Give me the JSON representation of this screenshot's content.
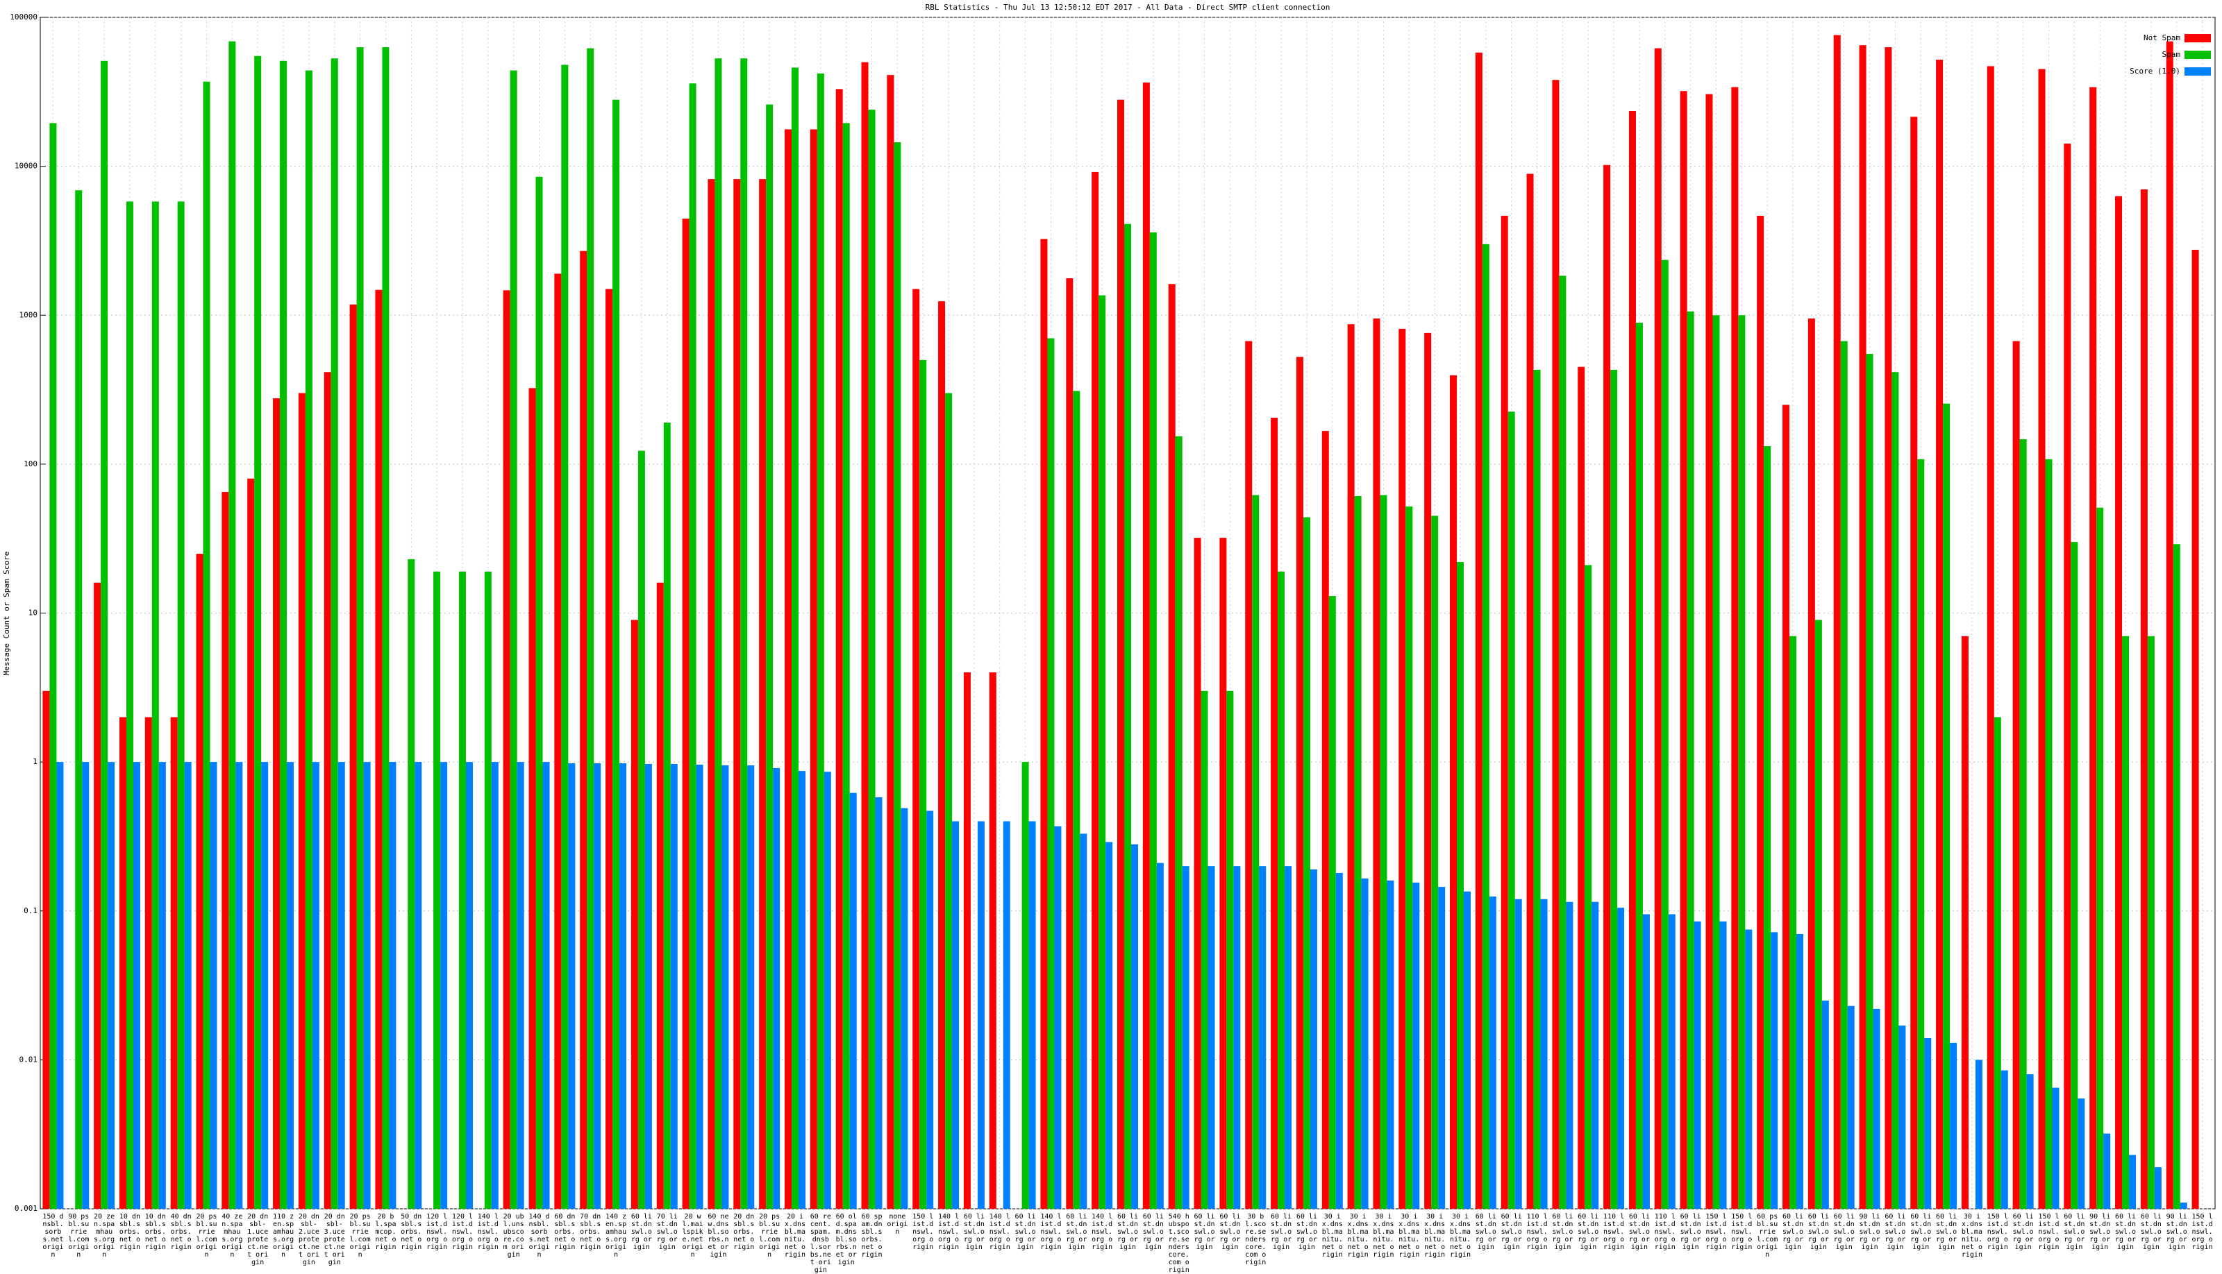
{
  "chart_data": {
    "type": "bar",
    "log_scale": true,
    "grid": true,
    "legend": "top-right",
    "title": "RBL Statistics - Thu Jul 13 12:50:12 EDT 2017 - All Data - Direct SMTP client connection",
    "y_label": "Message Count or Spam Score",
    "ylim": [
      0.001,
      100000
    ],
    "yticks": [
      0.001,
      0.01,
      0.1,
      1,
      10,
      100,
      1000,
      10000,
      100000
    ],
    "categories": [
      "150 dnsbl.sorbs.net origin",
      "90 psbl.surriel.com origin",
      "20 zen.spamhaus.org origin",
      "10 dnsbl.sorbs.net origin",
      "10 dnsbl.sorbs.net origin",
      "40 dnsbl.sorbs.net origin",
      "20 psbl.surriel.com origin",
      "40 zen.spamhaus.org origin",
      "20 dnsbl-1.uceprotect.net origin",
      "110 zen.spamhaus.org origin",
      "20 dnsbl-2.uceprotect.net origin",
      "20 dnsbl-3.uceprotect.net origin",
      "20 psbl.surriel.com origin",
      "20 bl.spamcop.net origin",
      "50 dnsbl.sorbs.net origin",
      "120 list.dnswl.org origin",
      "120 list.dnswl.org origin",
      "140 list.dnswl.org origin",
      "20 ubl.unsubscore.com origin",
      "140 dnsbl.sorbs.net origin",
      "60 dnsbl.sorbs.net origin",
      "70 dnsbl.sorbs.net origin",
      "140 zen.spamhaus.org origin",
      "60 list.dnswl.org origin",
      "70 list.dnswl.org origin",
      "20 wl.mailspike.net origin",
      "60 new.dnsbl.sorbs.net origin",
      "20 dnsbl.sorbs.net origin",
      "20 psbl.surriel.com origin",
      "20 ix.dnsbl.manitu.net origin",
      "60 recent.spam.dnsbl.sorbs.net origin",
      "60 old.spam.dnsbl.sorbs.net origin",
      "60 spam.dnsbl.sorbs.net origin",
      "none origin",
      "150 list.dnswl.org origin",
      "140 list.dnswl.org origin",
      "60 list.dnswl.org origin",
      "140 list.dnswl.org origin",
      "60 list.dnswl.org origin",
      "140 list.dnswl.org origin",
      "60 list.dnswl.org origin",
      "140 list.dnswl.org origin",
      "60 list.dnswl.org origin",
      "60 list.dnswl.org origin",
      "540 hubspot.score.senderscore.com origin",
      "60 list.dnswl.org origin",
      "60 list.dnswl.org origin",
      "30 bl.score.senderscore.com origin",
      "60 list.dnswl.org origin",
      "60 list.dnswl.org origin",
      "30 ix.dnsbl.manitu.net origin",
      "30 ix.dnsbl.manitu.net origin",
      "30 ix.dnsbl.manitu.net origin",
      "30 ix.dnsbl.manitu.net origin",
      "30 ix.dnsbl.manitu.net origin",
      "30 ix.dnsbl.manitu.net origin",
      "60 list.dnswl.org origin",
      "60 list.dnswl.org origin",
      "110 list.dnswl.org origin",
      "60 list.dnswl.org origin",
      "60 list.dnswl.org origin",
      "110 list.dnswl.org origin",
      "60 list.dnswl.org origin",
      "110 list.dnswl.org origin",
      "60 list.dnswl.org origin",
      "150 list.dnswl.org origin",
      "150 list.dnswl.org origin",
      "60 psbl.surriel.com origin",
      "60 list.dnswl.org origin",
      "60 list.dnswl.org origin",
      "60 list.dnswl.org origin",
      "90 list.dnswl.org origin",
      "60 list.dnswl.org origin",
      "60 list.dnswl.org origin",
      "60 list.dnswl.org origin",
      "30 ix.dnsbl.manitu.net origin",
      "150 list.dnswl.org origin",
      "60 list.dnswl.org origin",
      "150 list.dnswl.org origin",
      "60 list.dnswl.org origin",
      "90 list.dnswl.org origin",
      "60 list.dnswl.org origin",
      "60 list.dnswl.org origin",
      "90 list.dnswl.org origin",
      "150 list.dnswl.org origin"
    ],
    "series": [
      {
        "name": "Not Spam",
        "color": "#ff0000",
        "values": [
          3,
          null,
          16,
          2,
          2,
          2,
          25,
          65,
          80,
          277,
          300,
          415,
          1180,
          1480,
          null,
          null,
          null,
          null,
          1470,
          324,
          1900,
          2700,
          1500,
          9,
          16,
          4450,
          8200,
          8200,
          8200,
          17700,
          17700,
          33000,
          50000,
          41000,
          1500,
          1240,
          4,
          4,
          null,
          3250,
          1770,
          9150,
          28000,
          36500,
          1620,
          32,
          32,
          670,
          205,
          525,
          167,
          870,
          950,
          810,
          760,
          395,
          58000,
          4650,
          8900,
          38000,
          450,
          10200,
          23500,
          62000,
          32000,
          30500,
          34000,
          4650,
          250,
          950,
          76000,
          65000,
          63000,
          21500,
          52000,
          7,
          47000,
          670,
          45000,
          14200,
          34000,
          6300,
          7000,
          69000,
          2750
        ]
      },
      {
        "name": "Spam",
        "color": "#00c000",
        "values": [
          19500,
          6900,
          51000,
          5800,
          5800,
          5800,
          37000,
          69000,
          55000,
          51000,
          44000,
          53000,
          63000,
          63000,
          23,
          19,
          19,
          19,
          44000,
          8500,
          48000,
          62000,
          28000,
          123,
          190,
          36000,
          53000,
          53000,
          26000,
          46000,
          42000,
          19500,
          24000,
          14500,
          500,
          300,
          null,
          null,
          1,
          700,
          310,
          1360,
          4100,
          3600,
          154,
          3,
          3,
          62,
          19,
          44,
          13,
          61,
          62,
          52,
          45,
          22,
          3000,
          225,
          430,
          1840,
          21,
          430,
          890,
          2350,
          1060,
          1000,
          1000,
          132,
          7,
          9,
          670,
          550,
          415,
          108,
          255,
          null,
          2,
          147,
          108,
          30,
          51,
          7,
          7,
          29,
          null
        ]
      },
      {
        "name": "Score (1.0)",
        "color": "#0080ff",
        "values": [
          1,
          1,
          1,
          1,
          1,
          1,
          1,
          1,
          1,
          1,
          1,
          1,
          1,
          1,
          1,
          1,
          1,
          1,
          1,
          1,
          0.98,
          0.98,
          0.98,
          0.97,
          0.97,
          0.96,
          0.95,
          0.95,
          0.91,
          0.87,
          0.86,
          0.62,
          0.58,
          0.49,
          0.47,
          0.4,
          0.4,
          0.4,
          0.4,
          0.37,
          0.33,
          0.29,
          0.28,
          0.21,
          0.2,
          0.2,
          0.2,
          0.2,
          0.2,
          0.19,
          0.18,
          0.165,
          0.16,
          0.155,
          0.145,
          0.135,
          0.125,
          0.12,
          0.12,
          0.115,
          0.115,
          0.105,
          0.095,
          0.095,
          0.085,
          0.085,
          0.075,
          0.072,
          0.07,
          0.025,
          0.023,
          0.022,
          0.017,
          0.014,
          0.013,
          0.01,
          0.0085,
          0.008,
          0.0065,
          0.0055,
          0.0032,
          0.0023,
          0.0019,
          0.0011,
          null
        ]
      }
    ]
  }
}
